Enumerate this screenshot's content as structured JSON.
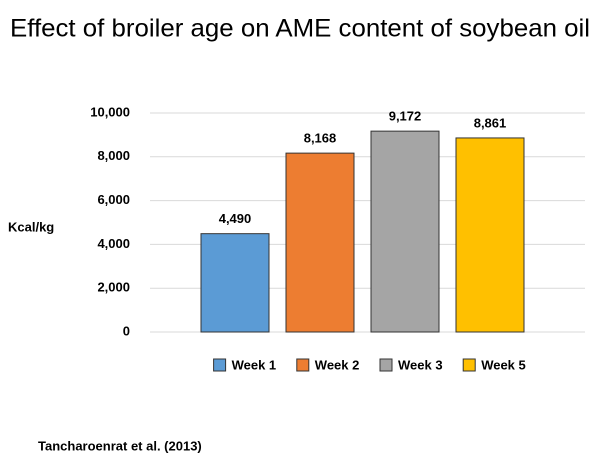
{
  "chart_data": {
    "type": "bar",
    "title": "Effect of broiler age on AME content of soybean oil",
    "y_label": "Kcal/kg",
    "source": "Tancharoenrat et al. (2013)",
    "categories": [
      null
    ],
    "series": [
      {
        "name": "Week 1",
        "color": "#5b9bd5",
        "values": [
          4490
        ],
        "value_labels": [
          "4,490"
        ]
      },
      {
        "name": "Week 2",
        "color": "#ed7d31",
        "values": [
          8168
        ],
        "value_labels": [
          "8,168"
        ]
      },
      {
        "name": "Week 3",
        "color": "#a5a5a5",
        "values": [
          9172
        ],
        "value_labels": [
          "9,172"
        ]
      },
      {
        "name": "Week 5",
        "color": "#ffc000",
        "values": [
          8861
        ],
        "value_labels": [
          "8,861"
        ]
      }
    ],
    "ylim": [
      0,
      10000
    ],
    "yticks": [
      0,
      {
        "value": 2000,
        "label": "2,000"
      },
      {
        "value": 4000,
        "label": "4,000"
      },
      {
        "value": 6000,
        "label": "6,000"
      },
      {
        "value": 8000,
        "label": "8,000"
      },
      {
        "value": 10000,
        "label": "10,000"
      }
    ],
    "grid": true,
    "legend": "bottom"
  }
}
